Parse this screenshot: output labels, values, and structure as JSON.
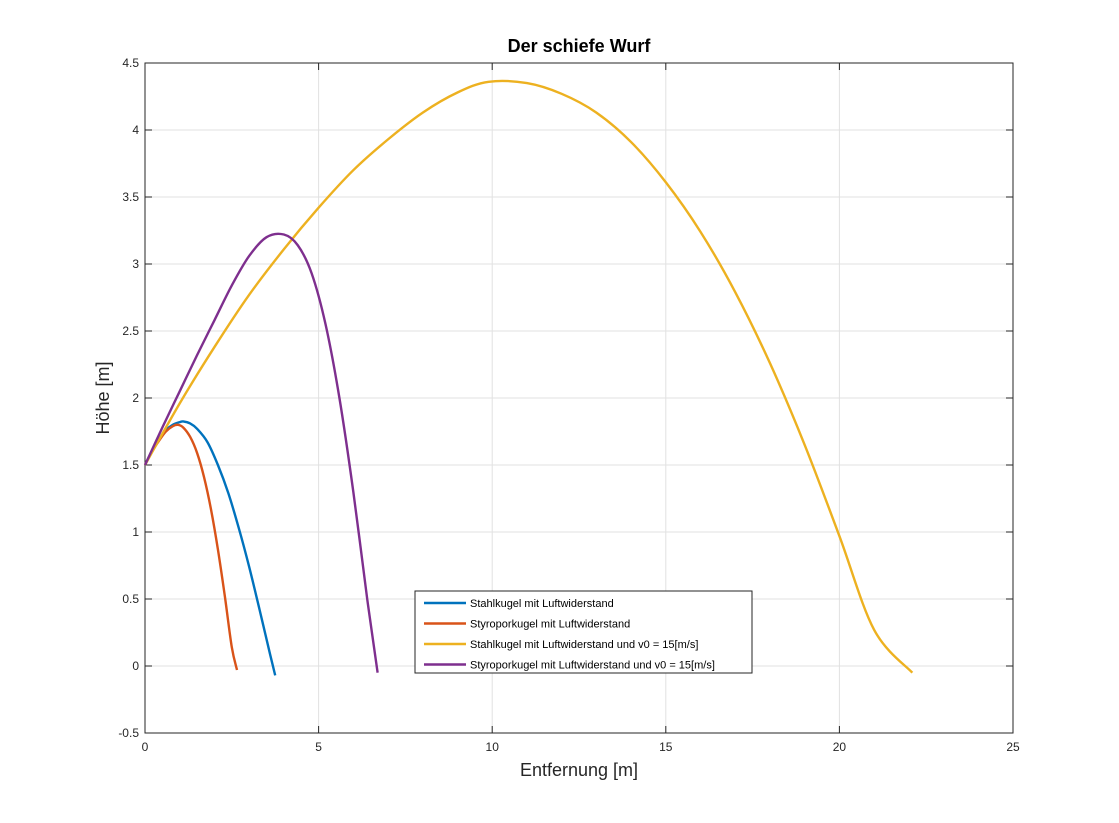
{
  "chart_data": {
    "type": "line",
    "title": "Der schiefe Wurf",
    "xlabel": "Entfernung [m]",
    "ylabel": "Höhe [m]",
    "xlim": [
      0,
      25
    ],
    "ylim": [
      -0.5,
      4.5
    ],
    "xticks": [
      0,
      5,
      10,
      15,
      20,
      25
    ],
    "xtick_labels": [
      "0",
      "5",
      "10",
      "15",
      "20",
      "25"
    ],
    "yticks": [
      -0.5,
      0,
      0.5,
      1,
      1.5,
      2,
      2.5,
      3,
      3.5,
      4,
      4.5
    ],
    "ytick_labels": [
      "-0.5",
      "0",
      "0.5",
      "1",
      "1.5",
      "2",
      "2.5",
      "3",
      "3.5",
      "4",
      "4.5"
    ],
    "grid": true,
    "legend_location": "bottom-center",
    "series": [
      {
        "name": "Stahlkugel mit Luftwiderstand",
        "color": "#0072BD",
        "x": [
          0,
          0.2,
          0.4,
          0.6,
          0.8,
          1.0,
          1.1,
          1.3,
          1.5,
          1.8,
          2.1,
          2.4,
          2.7,
          3.0,
          3.3,
          3.6,
          3.75
        ],
        "y": [
          1.5,
          1.6,
          1.69,
          1.76,
          1.8,
          1.82,
          1.825,
          1.81,
          1.77,
          1.67,
          1.5,
          1.29,
          1.03,
          0.74,
          0.42,
          0.09,
          -0.07
        ]
      },
      {
        "name": "Styroporkugel mit Luftwiderstand",
        "color": "#D95319",
        "x": [
          0,
          0.2,
          0.4,
          0.6,
          0.8,
          0.95,
          1.1,
          1.3,
          1.5,
          1.7,
          1.9,
          2.1,
          2.3,
          2.5,
          2.65
        ],
        "y": [
          1.5,
          1.6,
          1.68,
          1.75,
          1.79,
          1.8,
          1.78,
          1.71,
          1.59,
          1.41,
          1.17,
          0.87,
          0.52,
          0.14,
          -0.03
        ]
      },
      {
        "name": "Stahlkugel mit Luftwiderstand und v0 = 15[m/s]",
        "color": "#EDB120",
        "x": [
          0,
          1,
          2,
          3,
          4,
          5,
          6,
          7,
          8,
          9,
          9.9,
          11,
          12,
          13,
          14,
          15,
          16,
          17,
          18,
          19,
          20,
          21,
          22.1
        ],
        "y": [
          1.5,
          1.96,
          2.38,
          2.77,
          3.11,
          3.42,
          3.7,
          3.93,
          4.13,
          4.28,
          4.36,
          4.35,
          4.27,
          4.13,
          3.91,
          3.61,
          3.24,
          2.79,
          2.26,
          1.65,
          0.97,
          0.27,
          -0.05
        ]
      },
      {
        "name": "Styroporkugel mit Luftwiderstand und v0 = 15[m/s]",
        "color": "#7E2F8E",
        "x": [
          0,
          0.5,
          1,
          1.5,
          2,
          2.5,
          3,
          3.5,
          4.0,
          4.4,
          4.8,
          5.2,
          5.6,
          6.0,
          6.4,
          6.7
        ],
        "y": [
          1.5,
          1.78,
          2.05,
          2.32,
          2.58,
          2.84,
          3.06,
          3.2,
          3.22,
          3.14,
          2.93,
          2.55,
          2.0,
          1.3,
          0.5,
          -0.05
        ]
      }
    ]
  }
}
